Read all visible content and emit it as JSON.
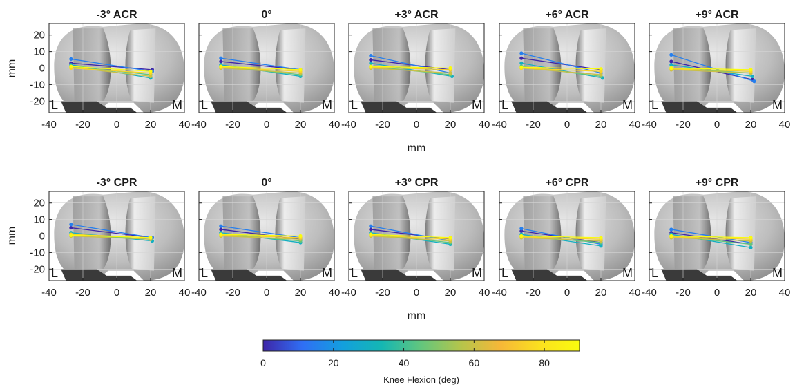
{
  "figure": {
    "xlabel": "mm",
    "ylabel": "mm",
    "side_labels": {
      "lateral": "L",
      "medial": "M"
    },
    "colorbar": {
      "label": "Knee Flexion (deg)",
      "min": 0,
      "max": 90,
      "ticks": [
        0,
        20,
        40,
        60,
        80
      ],
      "colormap": "parula",
      "colors": [
        "#3e26a8",
        "#2f6ff5",
        "#139fde",
        "#14b7b3",
        "#63c67d",
        "#b5c54b",
        "#f6b738",
        "#fbe11f",
        "#f9fb0e"
      ]
    },
    "grid": true
  },
  "chart_data": [
    {
      "type": "scatter",
      "row": 1,
      "title": "-3° ACR",
      "xlim": [
        -40,
        40
      ],
      "ylim": [
        -27,
        27
      ],
      "xticks": [
        -40,
        -20,
        0,
        20,
        40
      ],
      "yticks": [
        -20,
        -10,
        0,
        10,
        20
      ],
      "series": [
        {
          "flexion": 0,
          "lateral": [
            -27,
            3
          ],
          "medial": [
            21,
            -1
          ]
        },
        {
          "flexion": 15,
          "lateral": [
            -27,
            5.5
          ],
          "medial": [
            21,
            -2
          ]
        },
        {
          "flexion": 30,
          "lateral": [
            -27,
            2
          ],
          "medial": [
            20,
            -6
          ]
        },
        {
          "flexion": 45,
          "lateral": [
            -27,
            1
          ],
          "medial": [
            20,
            -4
          ]
        },
        {
          "flexion": 60,
          "lateral": [
            -27,
            0.5
          ],
          "medial": [
            20,
            -5
          ]
        },
        {
          "flexion": 75,
          "lateral": [
            -27,
            0
          ],
          "medial": [
            20,
            -3
          ]
        },
        {
          "flexion": 90,
          "lateral": [
            -27,
            1
          ],
          "medial": [
            20,
            -2
          ]
        }
      ]
    },
    {
      "type": "scatter",
      "row": 1,
      "title": "0°",
      "xlim": [
        -40,
        40
      ],
      "ylim": [
        -27,
        27
      ],
      "xticks": [
        -40,
        -20,
        0,
        20,
        40
      ],
      "yticks": [
        -20,
        -10,
        0,
        10,
        20
      ],
      "series": [
        {
          "flexion": 0,
          "lateral": [
            -27,
            4
          ],
          "medial": [
            20,
            -1
          ]
        },
        {
          "flexion": 15,
          "lateral": [
            -27,
            6
          ],
          "medial": [
            20,
            -1
          ]
        },
        {
          "flexion": 30,
          "lateral": [
            -27,
            2
          ],
          "medial": [
            20,
            -5
          ]
        },
        {
          "flexion": 45,
          "lateral": [
            -27,
            1
          ],
          "medial": [
            20,
            -4
          ]
        },
        {
          "flexion": 60,
          "lateral": [
            -27,
            0
          ],
          "medial": [
            20,
            -3
          ]
        },
        {
          "flexion": 75,
          "lateral": [
            -27,
            0.5
          ],
          "medial": [
            20,
            -2
          ]
        },
        {
          "flexion": 90,
          "lateral": [
            -27,
            1
          ],
          "medial": [
            20,
            -1
          ]
        }
      ]
    },
    {
      "type": "scatter",
      "row": 1,
      "title": "+3° ACR",
      "xlim": [
        -40,
        40
      ],
      "ylim": [
        -27,
        27
      ],
      "xticks": [
        -40,
        -20,
        0,
        20,
        40
      ],
      "yticks": [
        -20,
        -10,
        0,
        10,
        20
      ],
      "series": [
        {
          "flexion": 0,
          "lateral": [
            -27,
            5
          ],
          "medial": [
            20,
            -1
          ]
        },
        {
          "flexion": 15,
          "lateral": [
            -27,
            7.5
          ],
          "medial": [
            20,
            -3
          ]
        },
        {
          "flexion": 30,
          "lateral": [
            -27,
            3
          ],
          "medial": [
            21,
            -5
          ]
        },
        {
          "flexion": 45,
          "lateral": [
            -27,
            1
          ],
          "medial": [
            20,
            -4
          ]
        },
        {
          "flexion": 60,
          "lateral": [
            -27,
            0
          ],
          "medial": [
            20,
            -3
          ]
        },
        {
          "flexion": 75,
          "lateral": [
            -27,
            0.5
          ],
          "medial": [
            20,
            -1
          ]
        },
        {
          "flexion": 90,
          "lateral": [
            -27,
            1
          ],
          "medial": [
            20,
            0
          ]
        }
      ]
    },
    {
      "type": "scatter",
      "row": 1,
      "title": "+6° ACR",
      "xlim": [
        -40,
        40
      ],
      "ylim": [
        -27,
        27
      ],
      "xticks": [
        -40,
        -20,
        0,
        20,
        40
      ],
      "yticks": [
        -20,
        -10,
        0,
        10,
        20
      ],
      "series": [
        {
          "flexion": 0,
          "lateral": [
            -27,
            6
          ],
          "medial": [
            20,
            -1
          ]
        },
        {
          "flexion": 15,
          "lateral": [
            -27,
            9
          ],
          "medial": [
            20,
            -3
          ]
        },
        {
          "flexion": 30,
          "lateral": [
            -27,
            3
          ],
          "medial": [
            21,
            -6
          ]
        },
        {
          "flexion": 45,
          "lateral": [
            -27,
            1
          ],
          "medial": [
            20,
            -5
          ]
        },
        {
          "flexion": 60,
          "lateral": [
            -27,
            0
          ],
          "medial": [
            20,
            -4
          ]
        },
        {
          "flexion": 75,
          "lateral": [
            -27,
            0
          ],
          "medial": [
            20,
            -2
          ]
        },
        {
          "flexion": 90,
          "lateral": [
            -27,
            0.5
          ],
          "medial": [
            20,
            -0.5
          ]
        }
      ]
    },
    {
      "type": "scatter",
      "row": 1,
      "title": "+9° ACR",
      "xlim": [
        -40,
        40
      ],
      "ylim": [
        -27,
        27
      ],
      "xticks": [
        -40,
        -20,
        0,
        20,
        40
      ],
      "yticks": [
        -20,
        -10,
        0,
        10,
        20
      ],
      "series": [
        {
          "flexion": 0,
          "lateral": [
            -27,
            4
          ],
          "medial": [
            21,
            -7
          ]
        },
        {
          "flexion": 15,
          "lateral": [
            -27,
            8
          ],
          "medial": [
            22,
            -8
          ]
        },
        {
          "flexion": 30,
          "lateral": [
            -27,
            2
          ],
          "medial": [
            21,
            -5
          ]
        },
        {
          "flexion": 45,
          "lateral": [
            -27,
            0
          ],
          "medial": [
            20,
            -3
          ]
        },
        {
          "flexion": 60,
          "lateral": [
            -27,
            -1
          ],
          "medial": [
            20,
            -3
          ]
        },
        {
          "flexion": 75,
          "lateral": [
            -27,
            -0.5
          ],
          "medial": [
            20,
            -2
          ]
        },
        {
          "flexion": 90,
          "lateral": [
            -27,
            0
          ],
          "medial": [
            20,
            -1
          ]
        }
      ]
    },
    {
      "type": "scatter",
      "row": 2,
      "title": "-3° CPR",
      "xlim": [
        -40,
        40
      ],
      "ylim": [
        -27,
        27
      ],
      "xticks": [
        -40,
        -20,
        0,
        20,
        40
      ],
      "yticks": [
        -20,
        -10,
        0,
        10,
        20
      ],
      "series": [
        {
          "flexion": 0,
          "lateral": [
            -27,
            5
          ],
          "medial": [
            21,
            -1
          ]
        },
        {
          "flexion": 15,
          "lateral": [
            -27,
            7
          ],
          "medial": [
            21,
            -1
          ]
        },
        {
          "flexion": 30,
          "lateral": [
            -27,
            2
          ],
          "medial": [
            21,
            -3
          ]
        },
        {
          "flexion": 45,
          "lateral": [
            -27,
            1
          ],
          "medial": [
            20,
            -2
          ]
        },
        {
          "flexion": 60,
          "lateral": [
            -27,
            0
          ],
          "medial": [
            20,
            -2
          ]
        },
        {
          "flexion": 75,
          "lateral": [
            -27,
            1
          ],
          "medial": [
            20,
            -1
          ]
        },
        {
          "flexion": 90,
          "lateral": [
            -27,
            0.5
          ],
          "medial": [
            20,
            -1
          ]
        }
      ]
    },
    {
      "type": "scatter",
      "row": 2,
      "title": "0°",
      "xlim": [
        -40,
        40
      ],
      "ylim": [
        -27,
        27
      ],
      "xticks": [
        -40,
        -20,
        0,
        20,
        40
      ],
      "yticks": [
        -20,
        -10,
        0,
        10,
        20
      ],
      "series": [
        {
          "flexion": 0,
          "lateral": [
            -27,
            4
          ],
          "medial": [
            20,
            -2
          ]
        },
        {
          "flexion": 15,
          "lateral": [
            -27,
            6
          ],
          "medial": [
            20,
            -1
          ]
        },
        {
          "flexion": 30,
          "lateral": [
            -27,
            2
          ],
          "medial": [
            20,
            -4
          ]
        },
        {
          "flexion": 45,
          "lateral": [
            -27,
            1
          ],
          "medial": [
            20,
            -3
          ]
        },
        {
          "flexion": 60,
          "lateral": [
            -27,
            0
          ],
          "medial": [
            20,
            -2
          ]
        },
        {
          "flexion": 75,
          "lateral": [
            -27,
            0.5
          ],
          "medial": [
            20,
            -1
          ]
        },
        {
          "flexion": 90,
          "lateral": [
            -27,
            1
          ],
          "medial": [
            20,
            0
          ]
        }
      ]
    },
    {
      "type": "scatter",
      "row": 2,
      "title": "+3° CPR",
      "xlim": [
        -40,
        40
      ],
      "ylim": [
        -27,
        27
      ],
      "xticks": [
        -40,
        -20,
        0,
        20,
        40
      ],
      "yticks": [
        -20,
        -10,
        0,
        10,
        20
      ],
      "series": [
        {
          "flexion": 0,
          "lateral": [
            -27,
            4
          ],
          "medial": [
            20,
            -2
          ]
        },
        {
          "flexion": 15,
          "lateral": [
            -27,
            6
          ],
          "medial": [
            20,
            -3
          ]
        },
        {
          "flexion": 30,
          "lateral": [
            -27,
            2
          ],
          "medial": [
            20,
            -5
          ]
        },
        {
          "flexion": 45,
          "lateral": [
            -27,
            1
          ],
          "medial": [
            20,
            -4
          ]
        },
        {
          "flexion": 60,
          "lateral": [
            -27,
            0
          ],
          "medial": [
            20,
            -3
          ]
        },
        {
          "flexion": 75,
          "lateral": [
            -27,
            0.5
          ],
          "medial": [
            20,
            -2
          ]
        },
        {
          "flexion": 90,
          "lateral": [
            -27,
            1
          ],
          "medial": [
            20,
            -1
          ]
        }
      ]
    },
    {
      "type": "scatter",
      "row": 2,
      "title": "+6° CPR",
      "xlim": [
        -40,
        40
      ],
      "ylim": [
        -27,
        27
      ],
      "xticks": [
        -40,
        -20,
        0,
        20,
        40
      ],
      "yticks": [
        -20,
        -10,
        0,
        10,
        20
      ],
      "series": [
        {
          "flexion": 0,
          "lateral": [
            -27,
            3
          ],
          "medial": [
            20,
            -4
          ]
        },
        {
          "flexion": 15,
          "lateral": [
            -27,
            4.5
          ],
          "medial": [
            20,
            -5
          ]
        },
        {
          "flexion": 30,
          "lateral": [
            -27,
            1
          ],
          "medial": [
            20,
            -6
          ]
        },
        {
          "flexion": 45,
          "lateral": [
            -27,
            0
          ],
          "medial": [
            20,
            -4
          ]
        },
        {
          "flexion": 60,
          "lateral": [
            -27,
            -1
          ],
          "medial": [
            20,
            -3
          ]
        },
        {
          "flexion": 75,
          "lateral": [
            -27,
            -0.5
          ],
          "medial": [
            20,
            -2
          ]
        },
        {
          "flexion": 90,
          "lateral": [
            -27,
            0
          ],
          "medial": [
            20,
            -1
          ]
        }
      ]
    },
    {
      "type": "scatter",
      "row": 2,
      "title": "+9° CPR",
      "xlim": [
        -40,
        40
      ],
      "ylim": [
        -27,
        27
      ],
      "xticks": [
        -40,
        -20,
        0,
        20,
        40
      ],
      "yticks": [
        -20,
        -10,
        0,
        10,
        20
      ],
      "series": [
        {
          "flexion": 0,
          "lateral": [
            -27,
            2
          ],
          "medial": [
            20,
            -5
          ]
        },
        {
          "flexion": 15,
          "lateral": [
            -27,
            4
          ],
          "medial": [
            20,
            -4
          ]
        },
        {
          "flexion": 30,
          "lateral": [
            -27,
            1
          ],
          "medial": [
            20,
            -7
          ]
        },
        {
          "flexion": 45,
          "lateral": [
            -27,
            0
          ],
          "medial": [
            20,
            -5
          ]
        },
        {
          "flexion": 60,
          "lateral": [
            -27,
            -1
          ],
          "medial": [
            20,
            -3
          ]
        },
        {
          "flexion": 75,
          "lateral": [
            -27,
            -0.5
          ],
          "medial": [
            20,
            -2
          ]
        },
        {
          "flexion": 90,
          "lateral": [
            -27,
            0
          ],
          "medial": [
            20,
            -1
          ]
        }
      ]
    }
  ]
}
